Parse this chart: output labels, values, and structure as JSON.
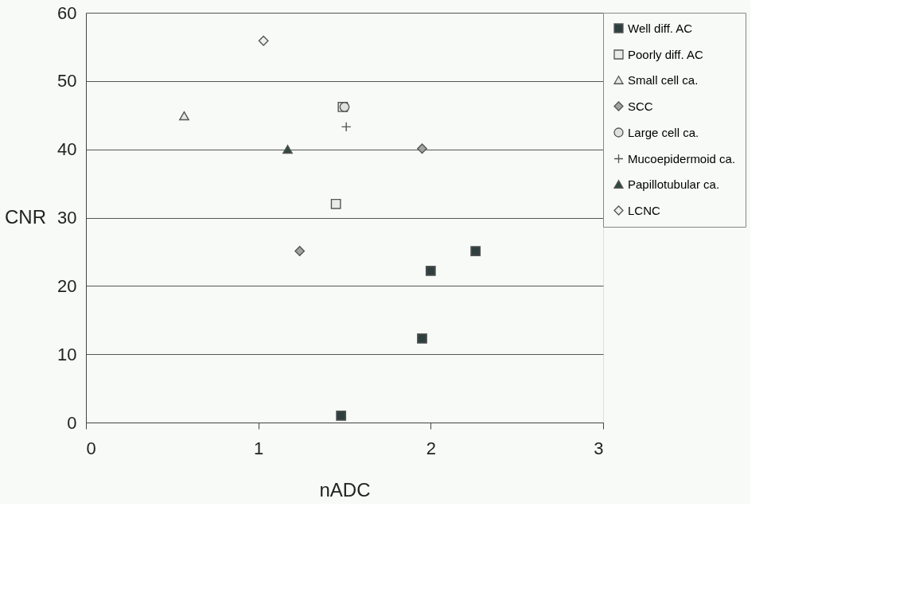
{
  "chart_data": {
    "type": "scatter",
    "xlabel": "nADC",
    "ylabel": "CNR",
    "xlim": [
      0,
      3
    ],
    "xticks": [
      0,
      1,
      2,
      3
    ],
    "ylim": [
      0,
      60
    ],
    "yticks": [
      0,
      10,
      20,
      30,
      40,
      50,
      60
    ],
    "grid": "y",
    "legend": "top right",
    "series": [
      {
        "name": "Well diff. AC",
        "color": "#2f3f40",
        "marker": "square",
        "x": [
          1.48,
          1.95,
          2.0,
          2.26
        ],
        "values": [
          1.0,
          12.3,
          22.2,
          25.1
        ]
      },
      {
        "name": "Poorly diff. AC",
        "color": "#e8ece8",
        "marker": "square",
        "x": [
          1.49,
          1.45
        ],
        "values": [
          46.2,
          32.0
        ]
      },
      {
        "name": "Small cell ca.",
        "color": "#e4e8e4",
        "marker": "triangle",
        "x": [
          0.57
        ],
        "values": [
          44.9
        ]
      },
      {
        "name": "SCC",
        "color": "#a0a4a0",
        "marker": "diamond",
        "x": [
          1.24,
          1.95
        ],
        "values": [
          25.1,
          40.1
        ]
      },
      {
        "name": "Large cell ca.",
        "color": "#dde2dd",
        "marker": "circle",
        "x": [
          1.5
        ],
        "values": [
          46.2
        ]
      },
      {
        "name": "Mucoepidermoid ca.",
        "color": "#555555",
        "marker": "cross",
        "x": [
          1.51
        ],
        "values": [
          43.3
        ]
      },
      {
        "name": "Papillotubular ca.",
        "color": "#2f4a40",
        "marker": "triangle",
        "x": [
          1.17
        ],
        "values": [
          40.0
        ]
      },
      {
        "name": "LCNC",
        "color": "#eef1ee",
        "marker": "diamond",
        "x": [
          1.03
        ],
        "values": [
          55.9
        ]
      }
    ]
  }
}
